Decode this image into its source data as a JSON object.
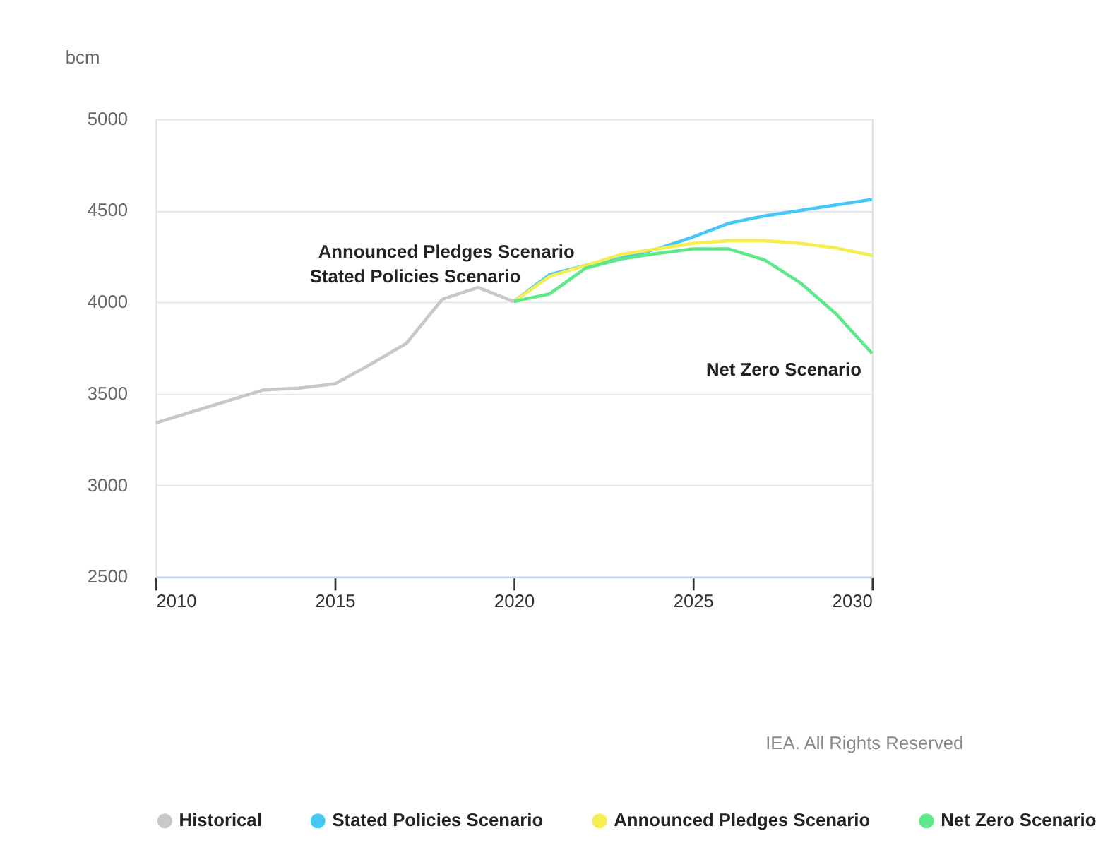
{
  "chart_data": {
    "type": "line",
    "ylabel": "bcm",
    "x": [
      2010,
      2011,
      2012,
      2013,
      2014,
      2015,
      2016,
      2017,
      2018,
      2019,
      2020
    ],
    "series": [
      {
        "name": "Historical",
        "color": "#c8c8c8",
        "values": [
          3340,
          3400,
          3460,
          3520,
          3530,
          3553,
          3660,
          3775,
          4015,
          4080,
          4003
        ]
      },
      {
        "name": "Stated Policies Scenario",
        "color": "#45c8f5",
        "x": [
          2020,
          2021,
          2022,
          2023,
          2024,
          2025,
          2026,
          2027,
          2028,
          2029,
          2030
        ],
        "values": [
          4003,
          4150,
          4200,
          4240,
          4290,
          4355,
          4430,
          4470,
          4500,
          4530,
          4560
        ]
      },
      {
        "name": "Announced Pledges Scenario",
        "color": "#f5ee50",
        "x": [
          2020,
          2021,
          2022,
          2023,
          2024,
          2025,
          2026,
          2027,
          2028,
          2029,
          2030
        ],
        "values": [
          4003,
          4140,
          4200,
          4260,
          4290,
          4320,
          4335,
          4335,
          4320,
          4295,
          4255
        ]
      },
      {
        "name": "Net Zero Scenario",
        "color": "#5de88a",
        "x": [
          2020,
          2021,
          2022,
          2023,
          2024,
          2025,
          2026,
          2027,
          2028,
          2029,
          2030
        ],
        "values": [
          4003,
          4045,
          4185,
          4235,
          4265,
          4290,
          4290,
          4230,
          4105,
          3935,
          3720
        ]
      }
    ],
    "xlim": [
      2010,
      2030
    ],
    "xticks": [
      2010,
      2015,
      2020,
      2025,
      2030
    ],
    "ylim": [
      2500,
      5000
    ],
    "yticks": [
      2500,
      3000,
      3500,
      4000,
      4500,
      5000
    ],
    "grid": "y",
    "legend": "bottom",
    "marker": "none",
    "line_style": "solid",
    "annotations": [
      "Announced Pledges Scenario",
      "Stated Policies Scenario",
      "Net Zero Scenario",
      "IEA. All Rights Reserved"
    ]
  }
}
